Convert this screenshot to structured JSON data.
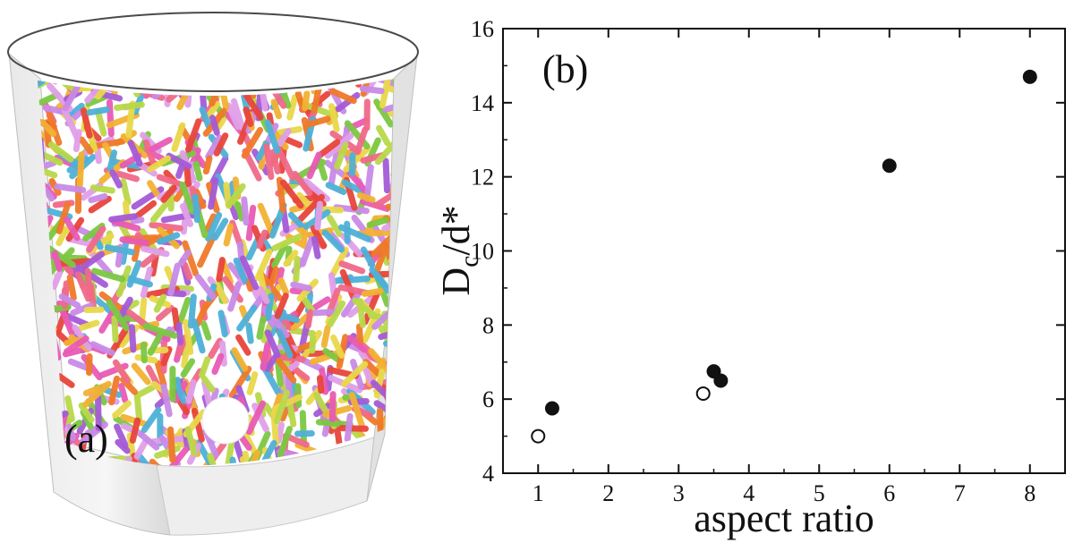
{
  "panel_a": {
    "label": "(a)",
    "colors": [
      "#e8453c",
      "#f07a2a",
      "#f2b233",
      "#e9d84a",
      "#b9d84a",
      "#7cc843",
      "#4fb0d8",
      "#a55bd6",
      "#c98be6",
      "#e85bb5",
      "#f06a8a",
      "#e0a0e8"
    ]
  },
  "panel_b": {
    "label": "(b)"
  },
  "chart_data": {
    "type": "scatter",
    "xlabel": "aspect ratio",
    "ylabel_main": "D",
    "ylabel_sub": "c",
    "ylabel_rest": "/d*",
    "xlim": [
      0.5,
      8.5
    ],
    "ylim": [
      4,
      16
    ],
    "xticks": [
      "1",
      "2",
      "3",
      "4",
      "5",
      "6",
      "7",
      "8"
    ],
    "yticks": [
      "4",
      "6",
      "8",
      "10",
      "12",
      "14",
      "16"
    ],
    "series": [
      {
        "marker": "filled",
        "points": [
          [
            1.2,
            5.75
          ],
          [
            3.5,
            6.75
          ],
          [
            3.6,
            6.5
          ],
          [
            6.0,
            12.3
          ],
          [
            8.0,
            14.7
          ]
        ]
      },
      {
        "marker": "open",
        "points": [
          [
            1.0,
            5.0
          ],
          [
            3.35,
            6.15
          ]
        ]
      }
    ]
  }
}
